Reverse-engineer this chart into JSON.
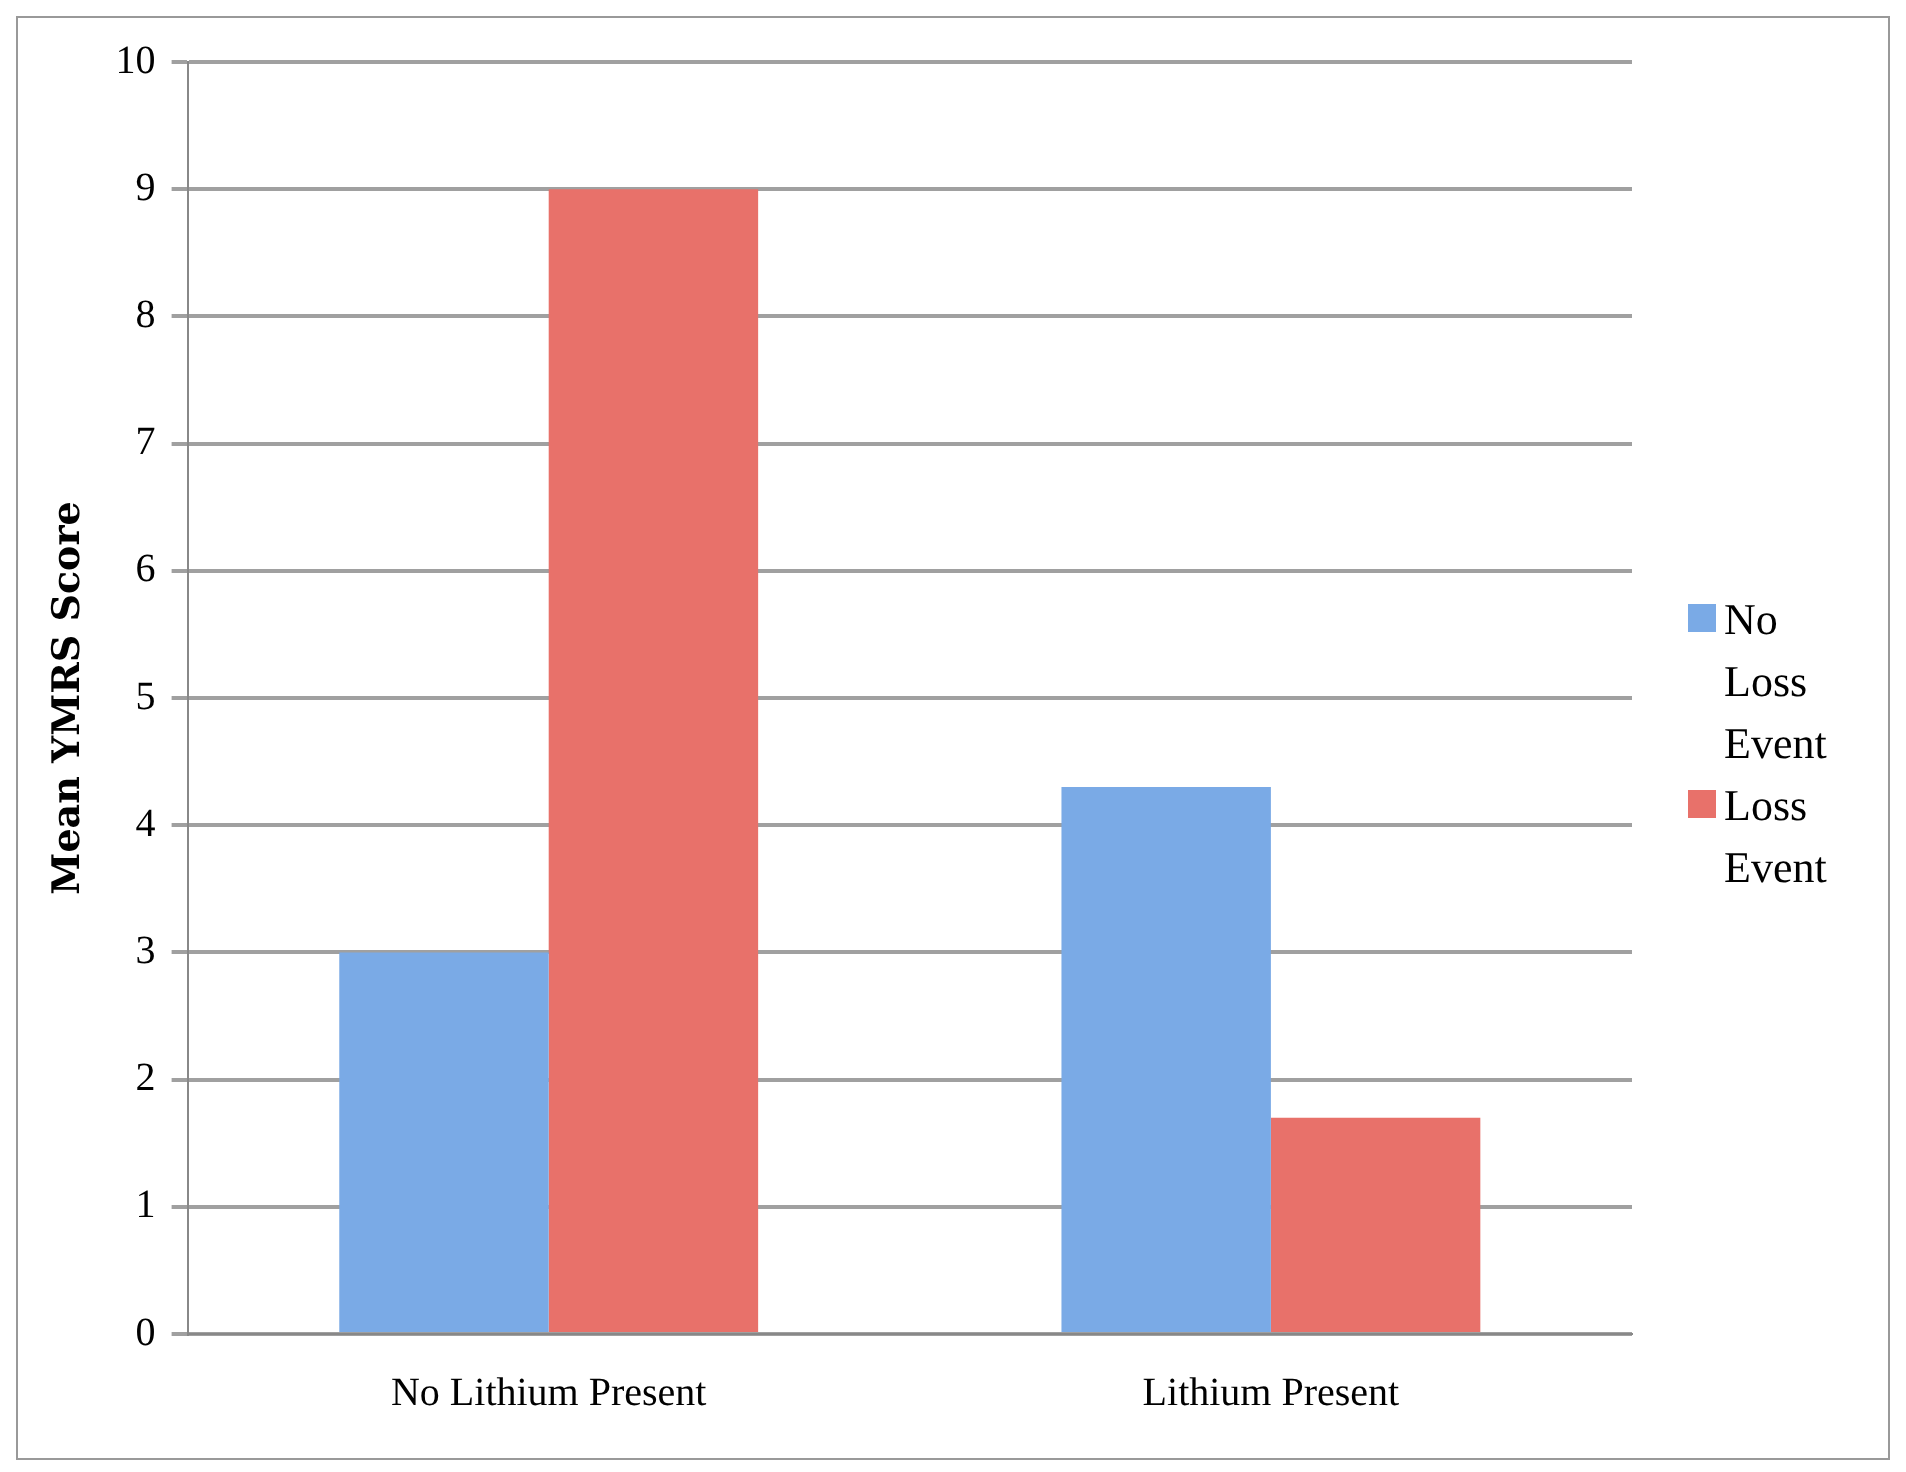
{
  "chart_data": {
    "type": "bar",
    "ylabel": "Mean YMRS Score",
    "categories": [
      "No Lithium Present",
      "Lithium Present"
    ],
    "series": [
      {
        "name": "No Loss Event",
        "color": "#7aaae6",
        "values": [
          3,
          4.3
        ]
      },
      {
        "name": "Loss Event",
        "color": "#e8716a",
        "values": [
          9,
          1.7
        ]
      }
    ],
    "ylim": [
      0,
      10
    ],
    "yticks": [
      0,
      1,
      2,
      3,
      4,
      5,
      6,
      7,
      8,
      9,
      10
    ],
    "grid": "y",
    "legend": "right"
  }
}
